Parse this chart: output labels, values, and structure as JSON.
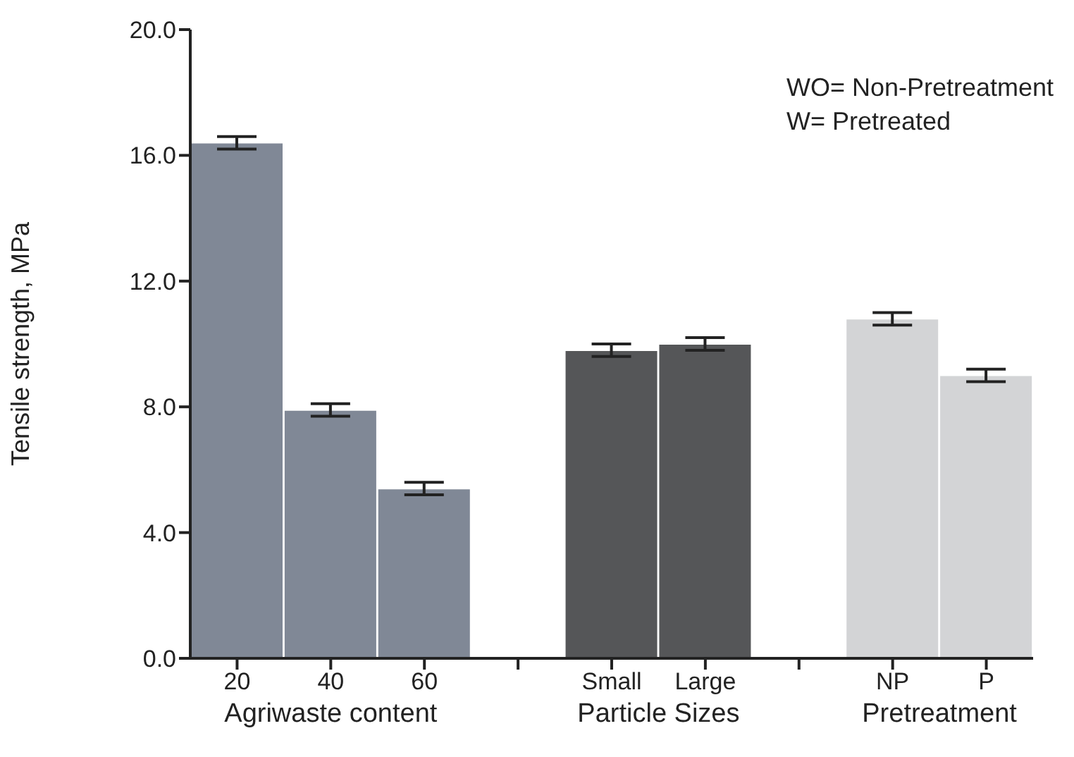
{
  "chart_data": {
    "type": "bar",
    "categories": [
      "20",
      "40",
      "60",
      null,
      "Small",
      "Large",
      null,
      "NP",
      "P"
    ],
    "values": [
      16.4,
      7.9,
      5.4,
      null,
      9.8,
      10.0,
      null,
      10.8,
      9.0
    ],
    "errors": [
      0.2,
      0.2,
      0.2,
      null,
      0.2,
      0.2,
      null,
      0.2,
      0.2
    ],
    "colors": [
      "#808896",
      "#808896",
      "#808896",
      null,
      "#555658",
      "#555658",
      null,
      "#d3d4d6",
      "#d3d4d6"
    ],
    "ylabel": "Tensile strength, MPa",
    "ylim": [
      0,
      20
    ],
    "yticks": [
      {
        "value": 0,
        "label": "0.0"
      },
      {
        "value": 4,
        "label": "4.0"
      },
      {
        "value": 8,
        "label": "8.0"
      },
      {
        "value": 12,
        "label": "12.0"
      },
      {
        "value": 16,
        "label": "16.0"
      },
      {
        "value": 20,
        "label": "20.0"
      }
    ],
    "annotations": [
      "WO= Non-Pretreatment",
      "W= Pretreated",
      "Agriwaste content",
      "Particle Sizes",
      "Pretreatment"
    ],
    "grid": false,
    "legend": false
  }
}
